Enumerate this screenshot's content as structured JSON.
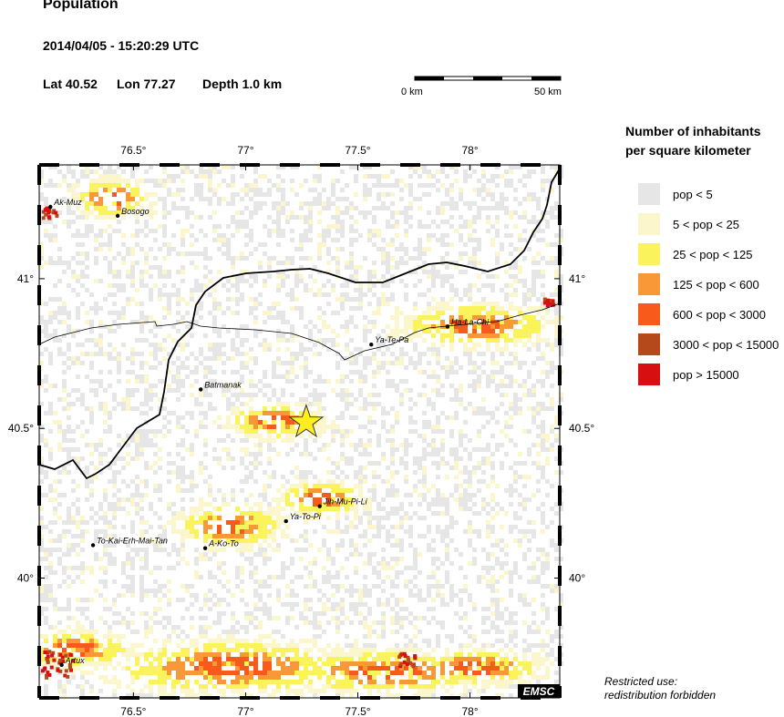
{
  "header": {
    "title": "Population",
    "datetime": "2014/04/05 - 15:20:29 UTC",
    "lat": "Lat 40.52",
    "lon": "Lon  77.27",
    "depth": "Depth  1.0 km"
  },
  "scale": {
    "left_label": "0 km",
    "right_label": "50 km"
  },
  "map": {
    "lon_range": [
      76.08,
      78.4
    ],
    "lat_range": [
      39.6,
      41.38
    ],
    "lon_ticks": [
      {
        "value": 76.5,
        "label": "76.5°"
      },
      {
        "value": 77,
        "label": "77°"
      },
      {
        "value": 77.5,
        "label": "77.5°"
      },
      {
        "value": 78,
        "label": "78°"
      }
    ],
    "lat_ticks": [
      {
        "value": 41,
        "label": "41°"
      },
      {
        "value": 40.5,
        "label": "40.5°"
      },
      {
        "value": 40,
        "label": "40°"
      }
    ],
    "epicenter": {
      "lon": 77.27,
      "lat": 40.52,
      "color": "#ffee22"
    },
    "cities": [
      {
        "name": "Ak-Muz",
        "lon": 76.13,
        "lat": 41.24
      },
      {
        "name": "Bosogo",
        "lon": 76.43,
        "lat": 41.21
      },
      {
        "name": "Batmanak",
        "lon": 76.8,
        "lat": 40.63
      },
      {
        "name": "Ya-Te-Pa",
        "lon": 77.56,
        "lat": 40.78
      },
      {
        "name": "Ha-La-Chi",
        "lon": 77.9,
        "lat": 40.84
      },
      {
        "name": "Jih-Mu-Pi-Li",
        "lon": 77.33,
        "lat": 40.24
      },
      {
        "name": "Ya-To-Pi",
        "lon": 77.18,
        "lat": 40.19
      },
      {
        "name": "A-Ko-To",
        "lon": 76.82,
        "lat": 40.1
      },
      {
        "name": "To-Kai-Erh-Mai-Tan",
        "lon": 76.32,
        "lat": 40.11
      },
      {
        "name": "Artux",
        "lon": 76.18,
        "lat": 39.71
      }
    ],
    "emsc_logo": "EMSC"
  },
  "legend": {
    "title_line1": "Number of inhabitants",
    "title_line2": "per square kilometer",
    "items": [
      {
        "label": "pop < 5",
        "color": "#e6e6e6"
      },
      {
        "label": "5 < pop < 25",
        "color": "#fbf6cc"
      },
      {
        "label": "25 < pop < 125",
        "color": "#faf35c"
      },
      {
        "label": "125 < pop < 600",
        "color": "#f99836"
      },
      {
        "label": "600 < pop < 3000",
        "color": "#f85a1c"
      },
      {
        "label": "3000 < pop < 15000",
        "color": "#b5491b"
      },
      {
        "label": "pop > 15000",
        "color": "#d80f10"
      }
    ]
  },
  "note": {
    "line1": "Restricted use:",
    "line2": "redistribution forbidden"
  }
}
